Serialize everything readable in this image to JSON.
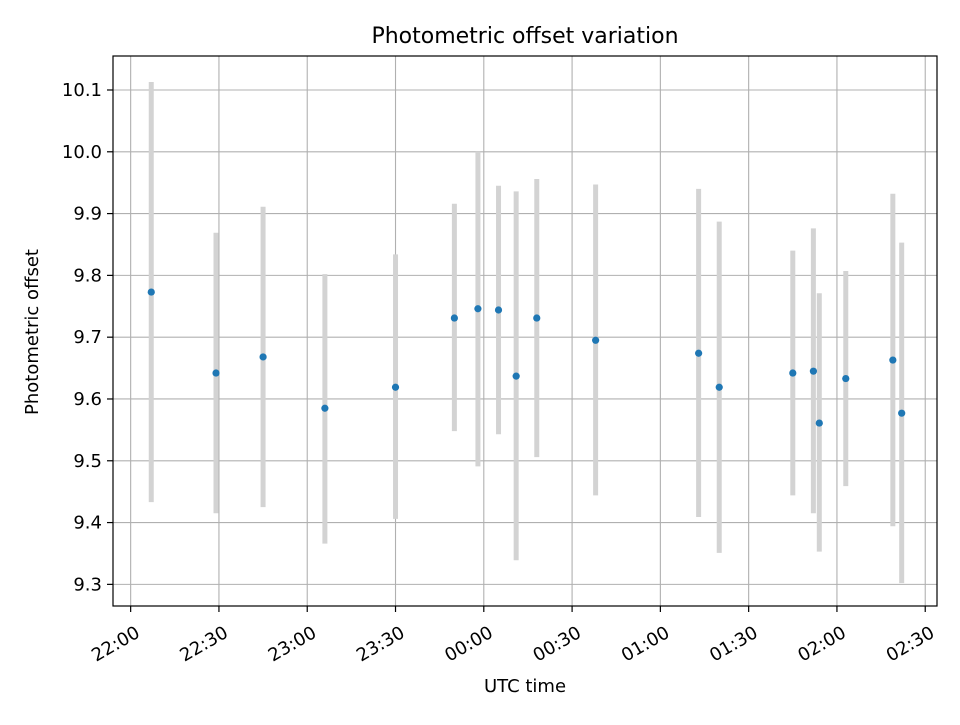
{
  "chart_data": {
    "type": "scatter",
    "title": "Photometric offset variation",
    "xlabel": "UTC time",
    "ylabel": "Photometric offset",
    "xlim": [
      "21:54",
      "02:34"
    ],
    "ylim": [
      9.265,
      10.155
    ],
    "x_ticks": [
      "22:00",
      "22:30",
      "23:00",
      "23:30",
      "00:00",
      "00:30",
      "01:00",
      "01:30",
      "02:00",
      "02:30"
    ],
    "y_ticks": [
      9.3,
      9.4,
      9.5,
      9.6,
      9.7,
      9.8,
      9.9,
      10.0,
      10.1
    ],
    "grid": true,
    "colors": {
      "marker": "#1f77b4",
      "errorbar": "#d3d3d3",
      "grid": "#b0b0b0"
    },
    "series": [
      {
        "points": [
          {
            "x": "22:07",
            "y": 9.773,
            "ylow": 9.433,
            "yhigh": 10.113
          },
          {
            "x": "22:29",
            "y": 9.642,
            "ylow": 9.415,
            "yhigh": 9.869
          },
          {
            "x": "22:45",
            "y": 9.668,
            "ylow": 9.425,
            "yhigh": 9.911
          },
          {
            "x": "23:06",
            "y": 9.585,
            "ylow": 9.366,
            "yhigh": 9.802
          },
          {
            "x": "23:30",
            "y": 9.619,
            "ylow": 9.406,
            "yhigh": 9.834
          },
          {
            "x": "23:50",
            "y": 9.731,
            "ylow": 9.548,
            "yhigh": 9.916
          },
          {
            "x": "23:58",
            "y": 9.746,
            "ylow": 9.491,
            "yhigh": 10.0
          },
          {
            "x": "00:05",
            "y": 9.744,
            "ylow": 9.543,
            "yhigh": 9.945
          },
          {
            "x": "00:11",
            "y": 9.637,
            "ylow": 9.339,
            "yhigh": 9.936
          },
          {
            "x": "00:18",
            "y": 9.731,
            "ylow": 9.506,
            "yhigh": 9.956
          },
          {
            "x": "00:38",
            "y": 9.695,
            "ylow": 9.444,
            "yhigh": 9.947
          },
          {
            "x": "01:13",
            "y": 9.674,
            "ylow": 9.409,
            "yhigh": 9.94
          },
          {
            "x": "01:20",
            "y": 9.619,
            "ylow": 9.351,
            "yhigh": 9.887
          },
          {
            "x": "01:45",
            "y": 9.642,
            "ylow": 9.444,
            "yhigh": 9.84
          },
          {
            "x": "01:52",
            "y": 9.645,
            "ylow": 9.415,
            "yhigh": 9.876
          },
          {
            "x": "01:54",
            "y": 9.561,
            "ylow": 9.353,
            "yhigh": 9.771
          },
          {
            "x": "02:03",
            "y": 9.633,
            "ylow": 9.459,
            "yhigh": 9.807
          },
          {
            "x": "02:19",
            "y": 9.663,
            "ylow": 9.394,
            "yhigh": 9.932
          },
          {
            "x": "02:22",
            "y": 9.577,
            "ylow": 9.302,
            "yhigh": 9.853
          }
        ]
      }
    ]
  }
}
